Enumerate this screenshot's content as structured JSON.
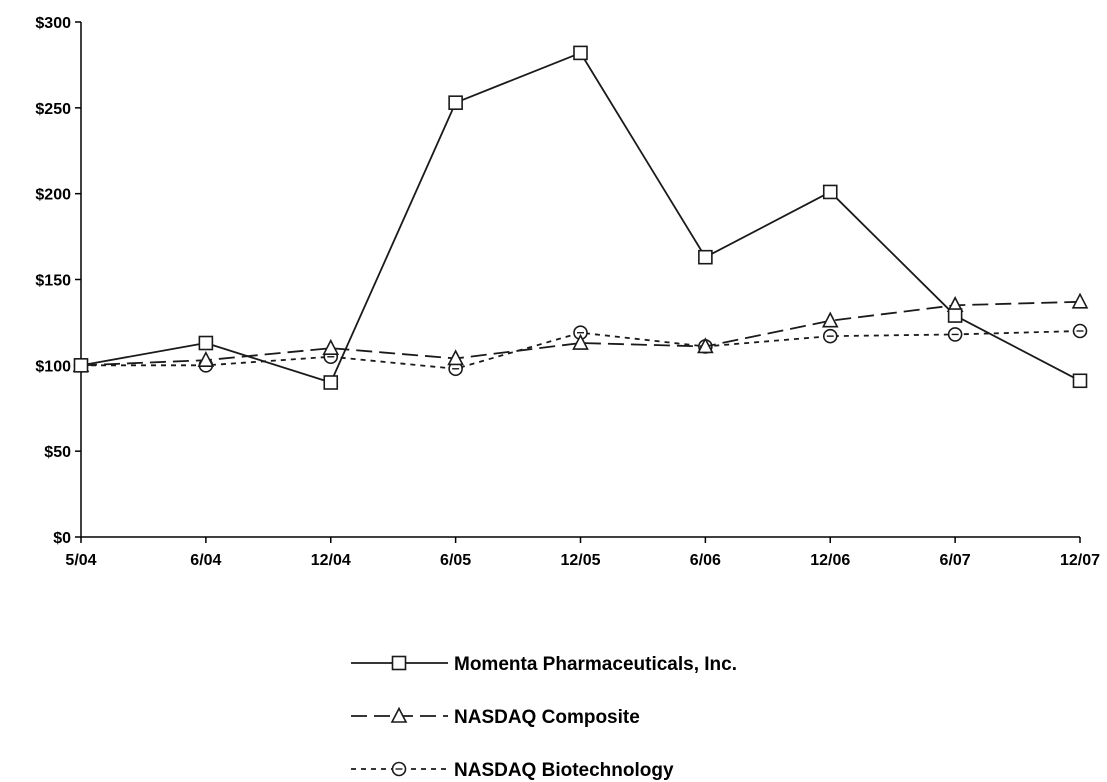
{
  "chart_data": {
    "type": "line",
    "title": "",
    "xlabel": "",
    "ylabel": "",
    "categories": [
      "5/04",
      "6/04",
      "12/04",
      "6/05",
      "12/05",
      "6/06",
      "12/06",
      "6/07",
      "12/07"
    ],
    "ylim": [
      0,
      300
    ],
    "yticks": [
      {
        "value": 0,
        "label": "$0"
      },
      {
        "value": 50,
        "label": "$50"
      },
      {
        "value": 100,
        "label": "$100"
      },
      {
        "value": 150,
        "label": "$150"
      },
      {
        "value": 200,
        "label": "$200"
      },
      {
        "value": 250,
        "label": "$250"
      },
      {
        "value": 300,
        "label": "$300"
      }
    ],
    "grid": false,
    "legend_position": "bottom-center",
    "series": [
      {
        "name": "Momenta Pharmaceuticals, Inc.",
        "marker": "square",
        "line_style": "solid",
        "color": "#1a1a1a",
        "values": [
          100,
          113,
          90,
          253,
          282,
          163,
          201,
          129,
          91
        ]
      },
      {
        "name": "NASDAQ Composite",
        "marker": "triangle",
        "line_style": "dashed",
        "color": "#1a1a1a",
        "values": [
          100,
          103,
          110,
          104,
          113,
          111,
          126,
          135,
          137
        ]
      },
      {
        "name": "NASDAQ Biotechnology",
        "marker": "circle",
        "line_style": "dotted",
        "color": "#1a1a1a",
        "values": [
          100,
          100,
          105,
          98,
          119,
          111,
          117,
          118,
          120
        ]
      }
    ]
  }
}
